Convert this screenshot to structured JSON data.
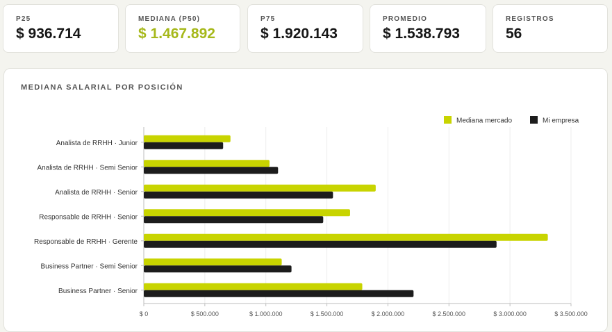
{
  "kpis": [
    {
      "label": "P25",
      "value": "$ 936.714"
    },
    {
      "label": "MEDIANA (P50)",
      "value": "$ 1.467.892"
    },
    {
      "label": "P75",
      "value": "$ 1.920.143"
    },
    {
      "label": "PROMEDIO",
      "value": "$ 1.538.793"
    },
    {
      "label": "REGISTROS",
      "value": "56"
    }
  ],
  "colors": {
    "accent": "#a6b81a",
    "market": "#c8d400",
    "company": "#1c1c1c"
  },
  "panel": {
    "title": "MEDIANA SALARIAL POR POSICIÓN"
  },
  "chart_data": {
    "type": "bar",
    "orientation": "horizontal",
    "title": "MEDIANA SALARIAL POR POSICIÓN",
    "categories": [
      "Analista de RRHH · Junior",
      "Analista de RRHH · Semi Senior",
      "Analista de RRHH · Senior",
      "Responsable de RRHH · Senior",
      "Responsable de RRHH · Gerente",
      "Business Partner · Semi Senior",
      "Business Partner · Senior"
    ],
    "series": [
      {
        "name": "Mediana mercado",
        "color": "#c8d400",
        "values": [
          710000,
          1030000,
          1900000,
          1690000,
          3310000,
          1130000,
          1790000
        ]
      },
      {
        "name": "Mi empresa",
        "color": "#1c1c1c",
        "values": [
          650000,
          1100000,
          1550000,
          1470000,
          2890000,
          1210000,
          2210000
        ]
      }
    ],
    "xlim": [
      0,
      3500000
    ],
    "xticks": [
      0,
      500000,
      1000000,
      1500000,
      2000000,
      2500000,
      3000000,
      3500000
    ],
    "xtick_labels": [
      "$ 0",
      "$ 500.000",
      "$ 1.000.000",
      "$ 1.500.000",
      "$ 2.000.000",
      "$ 2.500.000",
      "$ 3.000.000",
      "$ 3.500.000"
    ],
    "grid": true,
    "legend": "top-right"
  }
}
